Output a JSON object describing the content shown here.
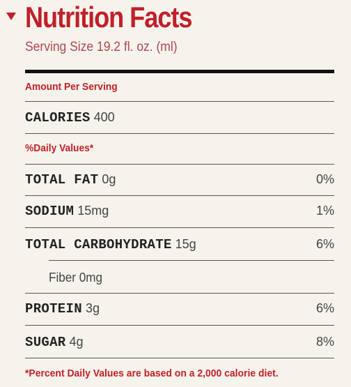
{
  "panel": {
    "title": "Nutrition Facts",
    "serving_size": "Serving Size 19.2 fl. oz. (ml)",
    "amount_per_serving": "Amount Per Serving",
    "calories_label": "CALORIES",
    "calories_value": "400",
    "daily_values_label": "%Daily Values*",
    "nutrients": [
      {
        "name": "TOTAL FAT",
        "amount": "0g",
        "percent": "0%"
      },
      {
        "name": "SODIUM",
        "amount": "15mg",
        "percent": "1%"
      },
      {
        "name": "TOTAL CARBOHYDRATE",
        "amount": "15g",
        "percent": "6%"
      },
      {
        "name": "Fiber",
        "amount": "0mg",
        "percent": ""
      },
      {
        "name": "PROTEIN",
        "amount": "3g",
        "percent": "6%"
      },
      {
        "name": "SUGAR",
        "amount": "4g",
        "percent": "8%"
      }
    ],
    "footnote": "*Percent Daily Values are based on a 2,000 calorie diet."
  },
  "colors": {
    "accent": "#c0202a",
    "background": "#f6f3ec",
    "text": "#2a2a2a"
  },
  "icons": {
    "toggle": "triangle-down-icon"
  }
}
